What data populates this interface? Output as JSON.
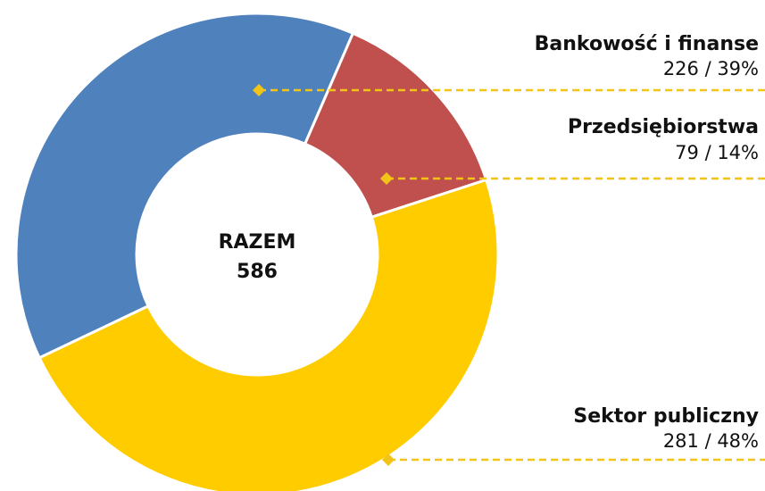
{
  "chart_data": {
    "type": "donut",
    "categories": [
      "Bankowość i finanse",
      "Przedsiębiorstwa",
      "Sektor publiczny"
    ],
    "values": [
      226,
      79,
      281
    ],
    "value_labels": [
      "226 / 39%",
      "79 / 14%",
      "281 / 48%"
    ],
    "colors": [
      "#4f81bd",
      "#c0504d",
      "#ffcc00"
    ],
    "center_label": "RAZEM",
    "total": 586
  }
}
